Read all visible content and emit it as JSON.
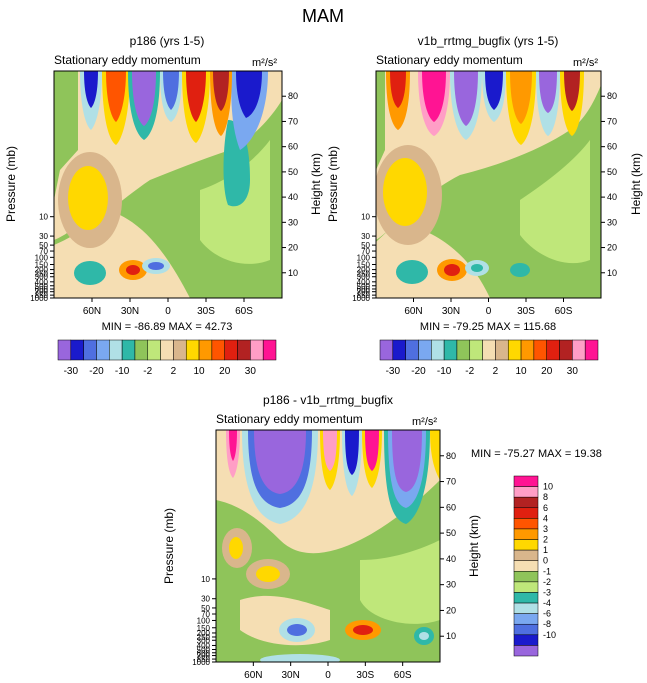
{
  "figure_title": "MAM",
  "units_label": "m²/s²",
  "colors": {
    "c1": "#9966dd",
    "c2": "#1a1acc",
    "c3": "#4f6fe0",
    "c4": "#7aa8f0",
    "c5": "#b0e0e6",
    "c6": "#2fb8a8",
    "c7": "#8fc45a",
    "c8": "#bfe77a",
    "c9": "#f5deb3",
    "c10": "#d9b68c",
    "c11": "#ffd800",
    "c12": "#ff9900",
    "c13": "#ff5500",
    "c14": "#e02010",
    "c15": "#b22222",
    "c16": "#ff9ec6",
    "c17": "#ff1493"
  },
  "chart_data": [
    {
      "type": "contour",
      "title": "p186 (yrs 1-5)",
      "subtitle": "Stationary eddy momentum",
      "units": "m²/s²",
      "ylabel_left": "Pressure (mb)",
      "ylabel_right": "Height (km)",
      "xticks": [
        "60N",
        "30N",
        "0",
        "30S",
        "60S"
      ],
      "x_values": [
        60,
        30,
        0,
        -30,
        -60
      ],
      "xlim": [
        90,
        -90
      ],
      "pressure_ticks": [
        "10",
        "30",
        "50",
        "70",
        "100",
        "150",
        "200",
        "250",
        "300",
        "400",
        "500",
        "600",
        "700",
        "850",
        "1000"
      ],
      "height_ticks": [
        "10",
        "20",
        "30",
        "40",
        "50",
        "60",
        "70",
        "80"
      ],
      "min_max": "MIN = -86.89  MAX = 42.73",
      "min": -86.89,
      "max": 42.73,
      "colorbar_labels": [
        "-30",
        "-20",
        "-10",
        "-2",
        "2",
        "10",
        "20",
        "30"
      ]
    },
    {
      "type": "contour",
      "title": "v1b_rrtmg_bugfix (yrs 1-5)",
      "subtitle": "Stationary eddy momentum",
      "units": "m²/s²",
      "ylabel_left": "Pressure (mb)",
      "ylabel_right": "Height (km)",
      "xticks": [
        "60N",
        "30N",
        "0",
        "30S",
        "60S"
      ],
      "x_values": [
        60,
        30,
        0,
        -30,
        -60
      ],
      "xlim": [
        90,
        -90
      ],
      "pressure_ticks": [
        "10",
        "30",
        "50",
        "70",
        "100",
        "150",
        "200",
        "250",
        "300",
        "400",
        "500",
        "600",
        "700",
        "850",
        "1000"
      ],
      "height_ticks": [
        "10",
        "20",
        "30",
        "40",
        "50",
        "60",
        "70",
        "80"
      ],
      "min_max": "MIN = -79.25  MAX = 115.68",
      "min": -79.25,
      "max": 115.68,
      "colorbar_labels": [
        "-30",
        "-20",
        "-10",
        "-2",
        "2",
        "10",
        "20",
        "30"
      ]
    },
    {
      "type": "contour",
      "title": "p186 - v1b_rrtmg_bugfix",
      "subtitle": "Stationary eddy momentum",
      "units": "m²/s²",
      "ylabel_left": "Pressure (mb)",
      "ylabel_right": "Height (km)",
      "xticks": [
        "60N",
        "30N",
        "0",
        "30S",
        "60S"
      ],
      "x_values": [
        60,
        30,
        0,
        -30,
        -60
      ],
      "xlim": [
        90,
        -90
      ],
      "pressure_ticks": [
        "10",
        "30",
        "50",
        "70",
        "100",
        "150",
        "200",
        "250",
        "300",
        "400",
        "500",
        "600",
        "700",
        "850",
        "1000"
      ],
      "height_ticks": [
        "10",
        "20",
        "30",
        "40",
        "50",
        "60",
        "70",
        "80"
      ],
      "min_max": "MIN = -75.27  MAX =  19.38",
      "min": -75.27,
      "max": 19.38,
      "colorbar_labels": [
        "10",
        "8",
        "6",
        "4",
        "3",
        "2",
        "1",
        "0",
        "-1",
        "-2",
        "-3",
        "-4",
        "-6",
        "-8",
        "-10"
      ]
    }
  ]
}
